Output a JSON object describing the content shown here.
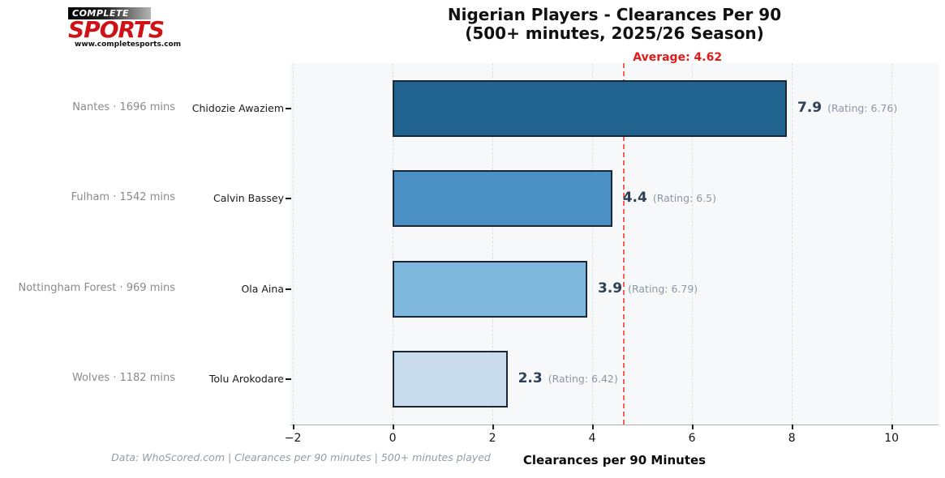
{
  "logo": {
    "top": "COMPLETE",
    "main": "SPORTS",
    "url": "www.completesports.com"
  },
  "title": {
    "line1": "Nigerian Players - Clearances Per 90",
    "line2": "(500+ minutes, 2025/26 Season)"
  },
  "average": {
    "label": "Average: 4.62",
    "value": 4.62
  },
  "xlabel": "Clearances per 90 Minutes",
  "footer": "Data: WhoScored.com | Clearances per 90 minutes | 500+ minutes played",
  "chart_data": {
    "type": "bar",
    "orientation": "horizontal",
    "title": "Nigerian Players - Clearances Per 90 (500+ minutes, 2025/26 Season)",
    "xlabel": "Clearances per 90 Minutes",
    "xticks": [
      -2,
      0,
      2,
      4,
      6,
      8,
      10
    ],
    "xlim": [
      -2.05,
      10.94
    ],
    "grid": true,
    "average_line": 4.62,
    "average_line_color": "#f0635c",
    "bar_border_color": "#1b2838",
    "plot_background": "#f7f8fa",
    "categories": [
      "Chidozie Awaziem",
      "Calvin Bassey",
      "Ola Aina",
      "Tolu Arokodare"
    ],
    "values": [
      7.9,
      4.4,
      3.9,
      2.3
    ],
    "players": [
      {
        "name": "Chidozie Awaziem",
        "club_label": "Nantes · 1696 mins",
        "value": 7.9,
        "value_label": "7.9",
        "rating_label": "(Rating: 6.76)",
        "rating": 6.76,
        "color": "#20638f"
      },
      {
        "name": "Calvin Bassey",
        "club_label": "Fulham · 1542 mins",
        "value": 4.4,
        "value_label": "4.4",
        "rating_label": "(Rating: 6.5)",
        "rating": 6.5,
        "color": "#4a90c4"
      },
      {
        "name": "Ola Aina",
        "club_label": "Nottingham Forest · 969 mins",
        "value": 3.9,
        "value_label": "3.9",
        "rating_label": "(Rating: 6.79)",
        "rating": 6.79,
        "color": "#7fb8dc"
      },
      {
        "name": "Tolu Arokodare",
        "club_label": "Wolves · 1182 mins",
        "value": 2.3,
        "value_label": "2.3",
        "rating_label": "(Rating: 6.42)",
        "rating": 6.42,
        "color": "#c8dcee"
      }
    ]
  }
}
